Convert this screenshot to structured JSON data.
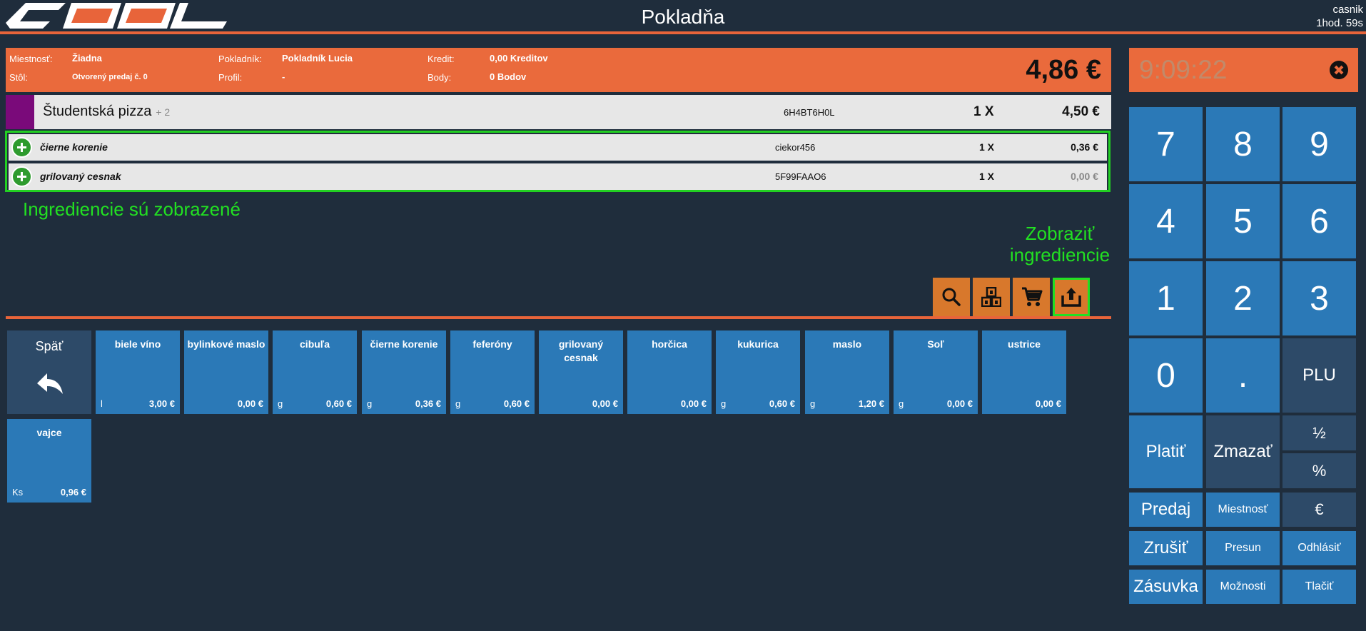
{
  "topbar": {
    "logo_text": "COOL",
    "title": "Pokladňa",
    "user": "casnik",
    "session": "1hod. 59s"
  },
  "info": {
    "room_label": "Miestnosť:",
    "room_value": "Žiadna",
    "table_label": "Stôl:",
    "table_value": "Otvorený predaj č. 0",
    "cashier_label": "Pokladník:",
    "cashier_value": "Pokladník Lucia",
    "profile_label": "Profil:",
    "profile_value": "-",
    "credit_label": "Kredit:",
    "credit_value": "0,00 Kreditov",
    "points_label": "Body:",
    "points_value": "0 Bodov",
    "total": "4,86 €"
  },
  "order": {
    "main_item": {
      "name": "Študentská pizza",
      "extra": "+ 2",
      "code": "6H4BT6H0L",
      "qty": "1 X",
      "price": "4,50 €",
      "color": "#7a0a7a"
    },
    "ingredients": [
      {
        "name": "čierne korenie",
        "code": "ciekor456",
        "qty": "1 X",
        "price": "0,36 €"
      },
      {
        "name": "grilovaný cesnak",
        "code": "5F99FAAO6",
        "qty": "1 X",
        "price": "0,00 €"
      }
    ]
  },
  "annotations": {
    "left": "Ingrediencie sú zobrazené",
    "right_line1": "Zobraziť",
    "right_line2": "ingrediencie"
  },
  "tools": [
    {
      "icon": "search-icon"
    },
    {
      "icon": "abc-blocks-icon"
    },
    {
      "icon": "cart-icon"
    },
    {
      "icon": "show-ingredients-icon"
    }
  ],
  "tiles": {
    "back_label": "Späť",
    "items": [
      {
        "name": "biele víno",
        "unit": "l",
        "price": "3,00 €"
      },
      {
        "name": "bylinkové maslo",
        "unit": "",
        "price": "0,00 €"
      },
      {
        "name": "cibuľa",
        "unit": "g",
        "price": "0,60 €"
      },
      {
        "name": "čierne korenie",
        "unit": "g",
        "price": "0,36 €"
      },
      {
        "name": "feferóny",
        "unit": "g",
        "price": "0,60 €"
      },
      {
        "name": "grilovaný cesnak",
        "unit": "",
        "price": "0,00 €"
      },
      {
        "name": "horčica",
        "unit": "",
        "price": "0,00 €"
      },
      {
        "name": "kukurica",
        "unit": "g",
        "price": "0,60 €"
      },
      {
        "name": "maslo",
        "unit": "g",
        "price": "1,20 €"
      },
      {
        "name": "Soľ",
        "unit": "g",
        "price": "0,00 €"
      },
      {
        "name": "ustrice",
        "unit": "",
        "price": "0,00 €"
      },
      {
        "name": "vajce",
        "unit": "Ks",
        "price": "0,96 €"
      }
    ]
  },
  "clock": {
    "time": "9:09:22"
  },
  "keypad": {
    "k7": "7",
    "k8": "8",
    "k9": "9",
    "k4": "4",
    "k5": "5",
    "k6": "6",
    "k1": "1",
    "k2": "2",
    "k3": "3",
    "k0": "0",
    "kdot": ".",
    "plu": "PLU",
    "pay": "Platiť",
    "clear": "Zmazať",
    "half": "½",
    "percent": "%",
    "sale": "Predaj",
    "room": "Miestnosť",
    "euro": "€",
    "cancel": "Zrušiť",
    "move": "Presun",
    "logout": "Odhlásiť",
    "drawer": "Zásuvka",
    "options": "Možnosti",
    "print": "Tlačiť"
  },
  "colors": {
    "background": "#1f2d3c",
    "accent": "#ea6a3c",
    "key_blue": "#2b79b7",
    "key_dark": "#2d4a68",
    "highlight_green": "#22e022"
  }
}
